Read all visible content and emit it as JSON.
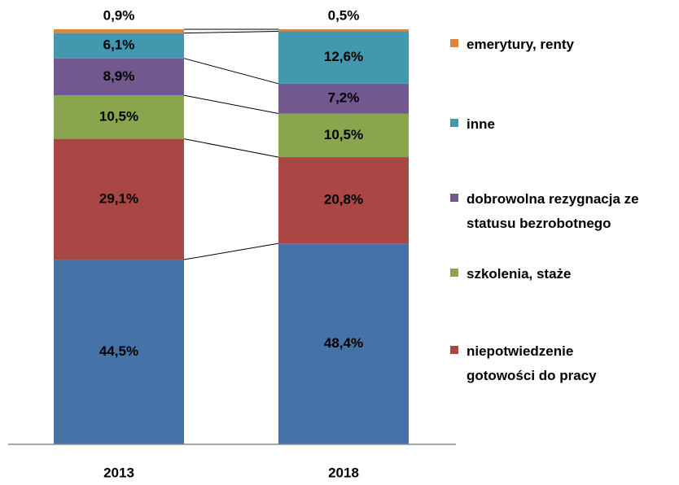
{
  "chart_data": {
    "type": "stacked_bar",
    "categories": [
      "2013",
      "2018"
    ],
    "ylim": [
      0,
      100
    ],
    "series": [
      {
        "color": "#4572a7",
        "values": [
          44.5,
          48.4
        ],
        "value_labels": [
          "44,5%",
          "48,4%"
        ]
      },
      {
        "name": "niepotwiedzenie gotowości do pracy",
        "color": "#aa4643",
        "values": [
          29.1,
          20.8
        ],
        "value_labels": [
          "29,1%",
          "20,8%"
        ]
      },
      {
        "name": "szkolenia, staże",
        "color": "#89a54e",
        "values": [
          10.5,
          10.5
        ],
        "value_labels": [
          "10,5%",
          "10,5%"
        ]
      },
      {
        "name": "dobrowolna rezygnacja ze statusu bezrobotnego",
        "color": "#71588f",
        "values": [
          8.9,
          7.2
        ],
        "value_labels": [
          "8,9%",
          "7,2%"
        ]
      },
      {
        "name": "inne",
        "color": "#4198af",
        "values": [
          6.1,
          12.6
        ],
        "value_labels": [
          "6,1%",
          "12,6%"
        ]
      },
      {
        "name": "emerytury, renty",
        "color": "#db843d",
        "values": [
          0.9,
          0.5
        ],
        "value_labels": [
          "0,9%",
          "0,5%"
        ]
      }
    ]
  }
}
